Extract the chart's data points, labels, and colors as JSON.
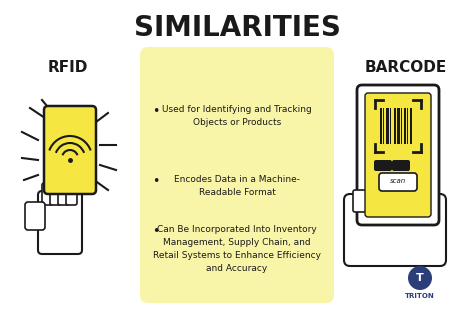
{
  "title": "SIMILARITIES",
  "left_label": "RFID",
  "right_label": "BARCODE",
  "bullet_points": [
    "Used for Identifying and Tracking\nObjects or Products",
    "Encodes Data in a Machine-\nReadable Format",
    "Can Be Incorporated Into Inventory\nManagement, Supply Chain, and\nRetail Systems to Enhance Efficiency\nand Accuracy"
  ],
  "bg_color": "#ffffff",
  "card_color": "#f9f5a8",
  "title_color": "#1a1a1a",
  "label_color": "#1a1a1a",
  "text_color": "#1a1a1a",
  "rfid_card_color": "#f5e642",
  "barcode_phone_color": "#f5e642",
  "accent_color": "#f5e642",
  "logo_color": "#2c3e7a"
}
